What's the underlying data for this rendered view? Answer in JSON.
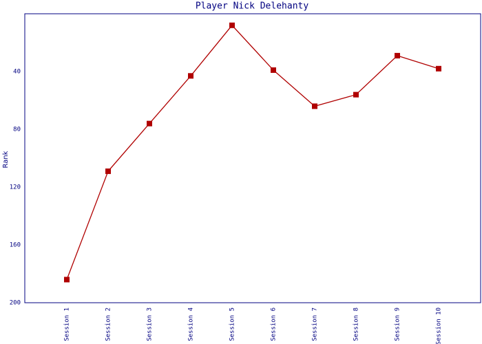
{
  "chart_data": {
    "type": "line",
    "title": "Player Nick Delehanty",
    "y_label": "Rank",
    "categories": [
      "Session 1",
      "Session 2",
      "Session 3",
      "Session 4",
      "Session 5",
      "Session 6",
      "Session 7",
      "Session 8",
      "Session 9",
      "Session 10"
    ],
    "series": [
      {
        "name": "Rank",
        "color": "#b00000",
        "values": [
          184,
          109,
          76,
          43,
          8,
          39,
          64,
          56,
          29,
          38
        ]
      }
    ],
    "ylim": [
      0,
      200
    ],
    "yticks": [
      40,
      80,
      120,
      160,
      200
    ],
    "y_inverted": true
  }
}
